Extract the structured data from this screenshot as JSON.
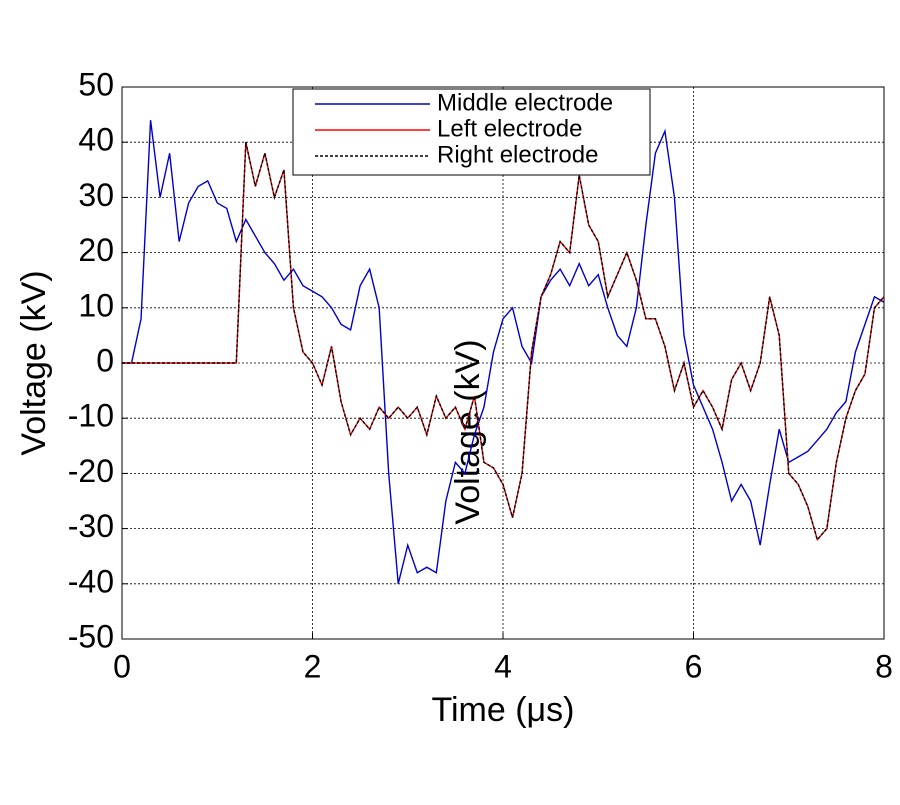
{
  "chart_data": {
    "type": "line",
    "xlabel": "Time (μs)",
    "ylabel": "Voltage (kV)",
    "x": [
      0,
      0.1,
      0.2,
      0.3,
      0.4,
      0.5,
      0.6,
      0.7,
      0.8,
      0.9,
      1,
      1.1,
      1.2,
      1.3,
      1.4,
      1.5,
      1.6,
      1.7,
      1.8,
      1.9,
      2,
      2.1,
      2.2,
      2.3,
      2.4,
      2.5,
      2.6,
      2.7,
      2.8,
      2.9,
      3,
      3.1,
      3.2,
      3.3,
      3.4,
      3.5,
      3.6,
      3.7,
      3.8,
      3.9,
      4,
      4.1,
      4.2,
      4.3,
      4.4,
      4.5,
      4.6,
      4.7,
      4.8,
      4.9,
      5,
      5.1,
      5.2,
      5.3,
      5.4,
      5.5,
      5.6,
      5.7,
      5.8,
      5.9,
      6,
      6.1,
      6.2,
      6.3,
      6.4,
      6.5,
      6.6,
      6.7,
      6.8,
      6.9,
      7,
      7.1,
      7.2,
      7.3,
      7.4,
      7.5,
      7.6,
      7.7,
      7.8,
      7.9,
      8
    ],
    "series": [
      {
        "name": "Middle electrode",
        "color": "#0000cc",
        "linestyle": "solid",
        "values": [
          0,
          0,
          8,
          44,
          30,
          38,
          22,
          29,
          32,
          33,
          29,
          28,
          22,
          26,
          23,
          20,
          18,
          15,
          17,
          14,
          13,
          12,
          10,
          7,
          6,
          14,
          17,
          10,
          -20,
          -40,
          -33,
          -38,
          -37,
          -38,
          -25,
          -18,
          -20,
          -13,
          -8,
          2,
          8,
          10,
          3,
          0,
          12,
          15,
          17,
          14,
          18,
          14,
          16,
          10,
          5,
          3,
          10,
          25,
          38,
          42,
          30,
          5,
          -4,
          -8,
          -12,
          -18,
          -25,
          -22,
          -25,
          -33,
          -22,
          -12,
          -18,
          -17,
          -16,
          -14,
          -12,
          -9,
          -7,
          2,
          7,
          12,
          11
        ]
      },
      {
        "name": "Left electrode",
        "color": "#ff0000",
        "linestyle": "solid",
        "values": [
          0,
          0,
          0,
          0,
          0,
          0,
          0,
          0,
          0,
          0,
          0,
          0,
          0,
          40,
          32,
          38,
          30,
          35,
          10,
          2,
          0,
          -4,
          3,
          -7,
          -13,
          -10,
          -12,
          -8,
          -10,
          -8,
          -10,
          -8,
          -13,
          -6,
          -10,
          -8,
          -12,
          -6,
          -18,
          -19,
          -22,
          -28,
          -20,
          2,
          12,
          16,
          22,
          20,
          34,
          25,
          22,
          12,
          16,
          20,
          15,
          8,
          8,
          3,
          -5,
          0,
          -8,
          -5,
          -8,
          -12,
          -3,
          0,
          -5,
          0,
          12,
          5,
          -20,
          -22,
          -26,
          -32,
          -30,
          -18,
          -10,
          -5,
          -2,
          10,
          12
        ]
      },
      {
        "name": "Right electrode",
        "color": "#000000",
        "linestyle": "dashed",
        "values": [
          0,
          0,
          0,
          0,
          0,
          0,
          0,
          0,
          0,
          0,
          0,
          0,
          0,
          40,
          32,
          38,
          30,
          35,
          10,
          2,
          0,
          -4,
          3,
          -7,
          -13,
          -10,
          -12,
          -8,
          -10,
          -8,
          -10,
          -8,
          -13,
          -6,
          -10,
          -8,
          -12,
          -6,
          -18,
          -19,
          -22,
          -28,
          -20,
          2,
          12,
          16,
          22,
          20,
          34,
          25,
          22,
          12,
          16,
          20,
          15,
          8,
          8,
          3,
          -5,
          0,
          -8,
          -5,
          -8,
          -12,
          -3,
          0,
          -5,
          0,
          12,
          5,
          -20,
          -22,
          -26,
          -32,
          -30,
          -18,
          -10,
          -5,
          -2,
          10,
          12
        ]
      }
    ],
    "xlim": [
      0,
      8
    ],
    "xticks": [
      0,
      2,
      4,
      6,
      8
    ],
    "ylim": [
      -50,
      50
    ],
    "yticks": [
      -50,
      -40,
      -30,
      -20,
      -10,
      0,
      10,
      20,
      30,
      40,
      50
    ],
    "grid": true,
    "legend": "upper center"
  }
}
